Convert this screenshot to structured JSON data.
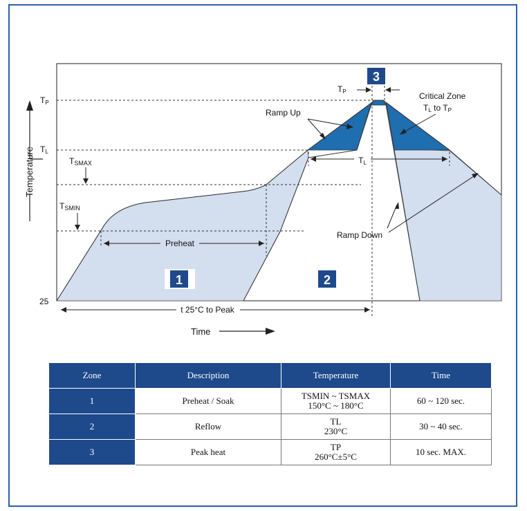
{
  "diagram": {
    "y_axis_label": "Temperature",
    "x_axis_label": "Time",
    "y_labels": {
      "tp": "T",
      "tp_sub": "P",
      "tl": "T",
      "tl_sub": "L",
      "tsmax": "T",
      "tsmax_sub": "SMAX",
      "tsmin": "T",
      "tsmin_sub": "SMIN",
      "base": "25"
    },
    "zone_badges": [
      "1",
      "2",
      "3"
    ],
    "labels": {
      "tp_width": "T",
      "tp_width_sub": "P",
      "critical_zone_line1": "Critical Zone",
      "critical_zone_line2_a": "T",
      "critical_zone_line2_a_sub": "L",
      "critical_zone_line2_b": " to T",
      "critical_zone_line2_b_sub": "P",
      "ramp_up": "Ramp Up",
      "ramp_down": "Ramp Down",
      "tl_width": "T",
      "tl_width_sub": "L",
      "preheat": "Preheat",
      "t25_to_peak": "t 25°C to Peak"
    },
    "colors": {
      "fill_light": "#d3deee",
      "fill_dark": "#1f6eb0",
      "badge": "#1e4a8c"
    }
  },
  "table": {
    "headers": [
      "Zone",
      "Description",
      "Temperature",
      "Time"
    ],
    "rows": [
      {
        "zone": "1",
        "description": "Preheat / Soak",
        "temp_line1": "TSMIN ~ TSMAX",
        "temp_line2": "150°C ~ 180°C",
        "time": "60 ~ 120 sec."
      },
      {
        "zone": "2",
        "description": "Reflow",
        "temp_line1": "TL",
        "temp_line2": "230°C",
        "time": "30 ~ 40 sec."
      },
      {
        "zone": "3",
        "description": "Peak heat",
        "temp_line1": "TP",
        "temp_line2": "260°C±5°C",
        "time": "10 sec. MAX."
      }
    ]
  }
}
